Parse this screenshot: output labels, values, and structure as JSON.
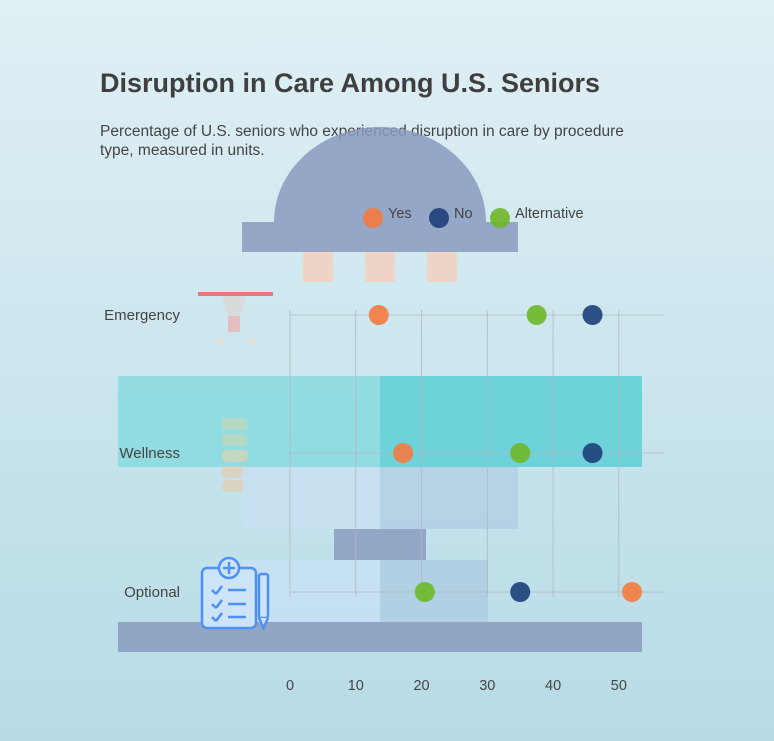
{
  "title": "Disruption in Care Among U.S. Seniors",
  "subtitle": "Percentage of U.S. seniors who experienced disruption in care by procedure type, measured in units.",
  "colors": {
    "Yes": "#f47a3f",
    "No": "#1c3f7a",
    "Alternative": "#6fb728",
    "grid": "#b0b8bd",
    "text": "#444444"
  },
  "chart_data": {
    "type": "scatter",
    "categories": [
      "Emergency",
      "Wellness",
      "Optional"
    ],
    "series": [
      {
        "name": "Yes",
        "values": [
          13.5,
          17.2,
          52.0
        ]
      },
      {
        "name": "No",
        "values": [
          46.0,
          46.0,
          35.0
        ]
      },
      {
        "name": "Alternative",
        "values": [
          37.5,
          35.0,
          20.5
        ]
      }
    ],
    "xlim": [
      0,
      52
    ],
    "xticks": [
      0,
      10,
      20,
      30,
      40,
      50
    ],
    "legend_position": "top",
    "grid": true
  }
}
